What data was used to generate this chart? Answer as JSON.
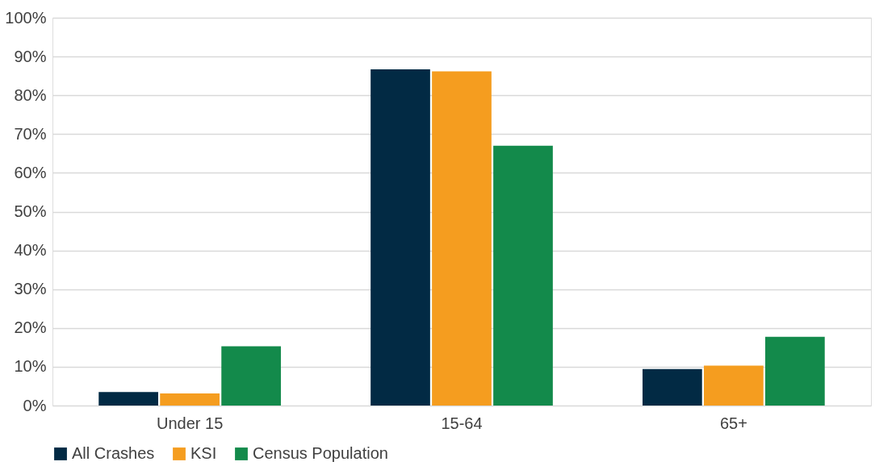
{
  "chart_data": {
    "type": "bar",
    "categories": [
      "Under 15",
      "15-64",
      "65+"
    ],
    "series": [
      {
        "name": "All Crashes",
        "color": "#022a44",
        "values": [
          3.5,
          86.7,
          9.4
        ]
      },
      {
        "name": "KSI",
        "color": "#f59d1f",
        "values": [
          3.1,
          86.2,
          10.3
        ]
      },
      {
        "name": "Census Population",
        "color": "#138a4b",
        "values": [
          15.3,
          67.0,
          17.7
        ]
      }
    ],
    "ylim": [
      0,
      100
    ],
    "yticks": [
      {
        "value": 0,
        "label": "0%"
      },
      {
        "value": 10,
        "label": "10%"
      },
      {
        "value": 20,
        "label": "20%"
      },
      {
        "value": 30,
        "label": "30%"
      },
      {
        "value": 40,
        "label": "40%"
      },
      {
        "value": 50,
        "label": "50%"
      },
      {
        "value": 60,
        "label": "60%"
      },
      {
        "value": 70,
        "label": "70%"
      },
      {
        "value": 80,
        "label": "80%"
      },
      {
        "value": 90,
        "label": "90%"
      },
      {
        "value": 100,
        "label": "100%"
      }
    ],
    "grid": "y",
    "legend": "bottom"
  }
}
